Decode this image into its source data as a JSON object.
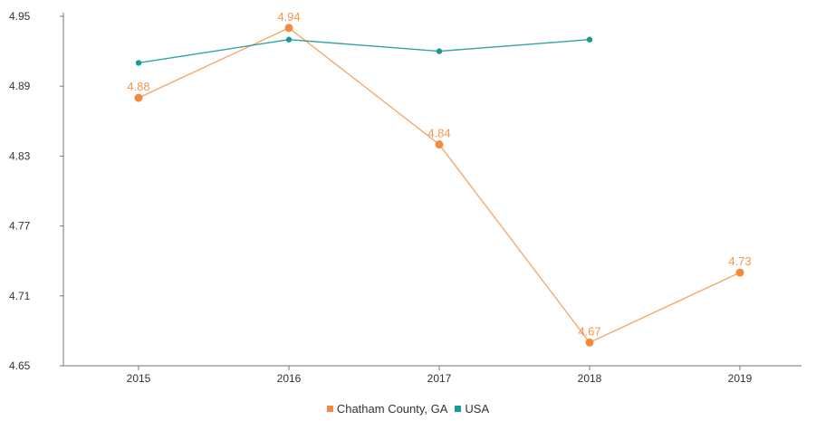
{
  "chart_data": {
    "type": "line",
    "title": "",
    "xlabel": "",
    "ylabel": "",
    "categories": [
      "2015",
      "2016",
      "2017",
      "2018",
      "2019"
    ],
    "ylim": [
      4.65,
      4.95
    ],
    "yticks": [
      "4.95",
      "4.89",
      "4.83",
      "4.77",
      "4.71",
      "4.65"
    ],
    "grid": false,
    "legend_position": "bottom",
    "series": [
      {
        "name": "Chatham County, GA",
        "color": "#f28c3c",
        "values": [
          4.88,
          4.94,
          4.84,
          4.67,
          4.73
        ],
        "labels": [
          "4.88",
          "4.94",
          "4.84",
          "4.67",
          "4.73"
        ]
      },
      {
        "name": "USA",
        "color": "#1a9a95",
        "values": [
          4.91,
          4.93,
          4.92,
          4.93,
          null
        ],
        "labels": []
      }
    ]
  }
}
